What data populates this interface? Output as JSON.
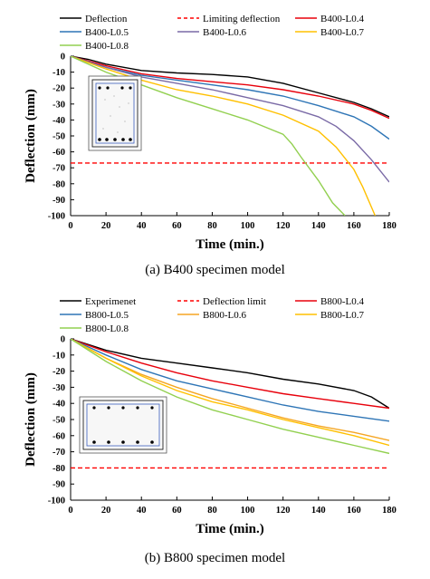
{
  "figure": {
    "caption_a": "(a) B400 specimen model",
    "caption_b": "(b) B800 specimen model"
  },
  "chart_data": [
    {
      "type": "line",
      "xlabel": "Time (min.)",
      "ylabel": "Deflection (mm)",
      "xlim": [
        0,
        180
      ],
      "ylim": [
        -100,
        0
      ],
      "xticks": [
        0,
        20,
        40,
        60,
        80,
        100,
        120,
        140,
        160,
        180
      ],
      "yticks": [
        0,
        -10,
        -20,
        -30,
        -40,
        -50,
        -60,
        -70,
        -80,
        -90,
        -100
      ],
      "grid": false,
      "legend_position": "top",
      "inset": "B400 cross-section drawing",
      "series": [
        {
          "name": "Deflection",
          "color": "#000000",
          "dashed": false,
          "x": [
            0,
            10,
            20,
            40,
            60,
            80,
            100,
            120,
            140,
            160,
            170,
            180
          ],
          "y": [
            0,
            -2,
            -5,
            -9,
            -10.5,
            -11.5,
            -13,
            -17,
            -23,
            -29,
            -33,
            -38
          ]
        },
        {
          "name": "Limiting deflection",
          "color": "#ff0000",
          "dashed": true,
          "x": [
            0,
            180
          ],
          "y": [
            -67,
            -67
          ]
        },
        {
          "name": "B400-L0.4",
          "color": "#e8000b",
          "dashed": false,
          "x": [
            0,
            20,
            40,
            60,
            80,
            100,
            120,
            140,
            160,
            170,
            180
          ],
          "y": [
            0,
            -6,
            -11,
            -14,
            -16,
            -18,
            -21,
            -25,
            -30,
            -34,
            -39
          ]
        },
        {
          "name": "B400-L0.5",
          "color": "#2e75b6",
          "dashed": false,
          "x": [
            0,
            20,
            40,
            60,
            80,
            100,
            120,
            140,
            160,
            170,
            180
          ],
          "y": [
            0,
            -7,
            -12,
            -15,
            -18,
            -21,
            -25,
            -31,
            -38,
            -44,
            -52
          ]
        },
        {
          "name": "B400-L0.6",
          "color": "#7a6aa6",
          "dashed": false,
          "x": [
            0,
            20,
            40,
            60,
            80,
            100,
            120,
            140,
            150,
            160,
            170,
            180
          ],
          "y": [
            0,
            -7,
            -13,
            -17,
            -21,
            -26,
            -31,
            -38,
            -44,
            -53,
            -65,
            -79
          ]
        },
        {
          "name": "B400-L0.7",
          "color": "#ffc000",
          "dashed": false,
          "x": [
            0,
            20,
            40,
            60,
            80,
            100,
            120,
            140,
            150,
            160,
            165,
            172
          ],
          "y": [
            0,
            -8,
            -15,
            -21,
            -25,
            -30,
            -37,
            -47,
            -57,
            -71,
            -82,
            -100
          ]
        },
        {
          "name": "B400-L0.8",
          "color": "#92d050",
          "dashed": false,
          "x": [
            0,
            20,
            40,
            60,
            80,
            100,
            120,
            125,
            130,
            140,
            148,
            155
          ],
          "y": [
            0,
            -10,
            -18,
            -26,
            -33,
            -40,
            -49,
            -55,
            -63,
            -78,
            -92,
            -100
          ]
        }
      ]
    },
    {
      "type": "line",
      "xlabel": "Time (min.)",
      "ylabel": "Deflection (mm)",
      "xlim": [
        0,
        180
      ],
      "ylim": [
        -100,
        0
      ],
      "xticks": [
        0,
        20,
        40,
        60,
        80,
        100,
        120,
        140,
        160,
        180
      ],
      "yticks": [
        0,
        -10,
        -20,
        -30,
        -40,
        -50,
        -60,
        -70,
        -80,
        -90,
        -100
      ],
      "grid": false,
      "legend_position": "top",
      "inset": "B800 cross-section drawing",
      "series": [
        {
          "name": "Experimenet",
          "color": "#000000",
          "dashed": false,
          "x": [
            0,
            20,
            40,
            60,
            80,
            100,
            120,
            140,
            160,
            170,
            180
          ],
          "y": [
            0,
            -7,
            -12,
            -15,
            -18,
            -21,
            -25,
            -28,
            -32,
            -36,
            -43
          ]
        },
        {
          "name": "Deflection limit",
          "color": "#ff0000",
          "dashed": true,
          "x": [
            0,
            180
          ],
          "y": [
            -80,
            -80
          ]
        },
        {
          "name": "B800-L0.4",
          "color": "#e8000b",
          "dashed": false,
          "x": [
            0,
            20,
            40,
            60,
            80,
            100,
            120,
            140,
            160,
            180
          ],
          "y": [
            0,
            -8,
            -15,
            -21,
            -26,
            -30,
            -34,
            -37,
            -40,
            -43
          ]
        },
        {
          "name": "B800-L0.5",
          "color": "#2e75b6",
          "dashed": false,
          "x": [
            0,
            20,
            40,
            60,
            80,
            100,
            120,
            140,
            160,
            180
          ],
          "y": [
            0,
            -10,
            -19,
            -26,
            -31,
            -36,
            -41,
            -45,
            -48,
            -51
          ]
        },
        {
          "name": "B800-L0.6",
          "color": "#f5a623",
          "dashed": false,
          "x": [
            0,
            20,
            40,
            60,
            80,
            100,
            120,
            140,
            160,
            180
          ],
          "y": [
            0,
            -12,
            -22,
            -30,
            -37,
            -43,
            -49,
            -54,
            -58,
            -63
          ]
        },
        {
          "name": "B800-L0.7",
          "color": "#ffc000",
          "dashed": false,
          "x": [
            0,
            20,
            40,
            60,
            80,
            100,
            120,
            140,
            160,
            180
          ],
          "y": [
            0,
            -12,
            -23,
            -32,
            -39,
            -44,
            -50,
            -55,
            -60,
            -66
          ]
        },
        {
          "name": "B800-L0.8",
          "color": "#92d050",
          "dashed": false,
          "x": [
            0,
            20,
            40,
            60,
            80,
            100,
            120,
            140,
            160,
            180
          ],
          "y": [
            0,
            -14,
            -26,
            -36,
            -44,
            -50,
            -56,
            -61,
            -66,
            -71
          ]
        }
      ]
    }
  ]
}
